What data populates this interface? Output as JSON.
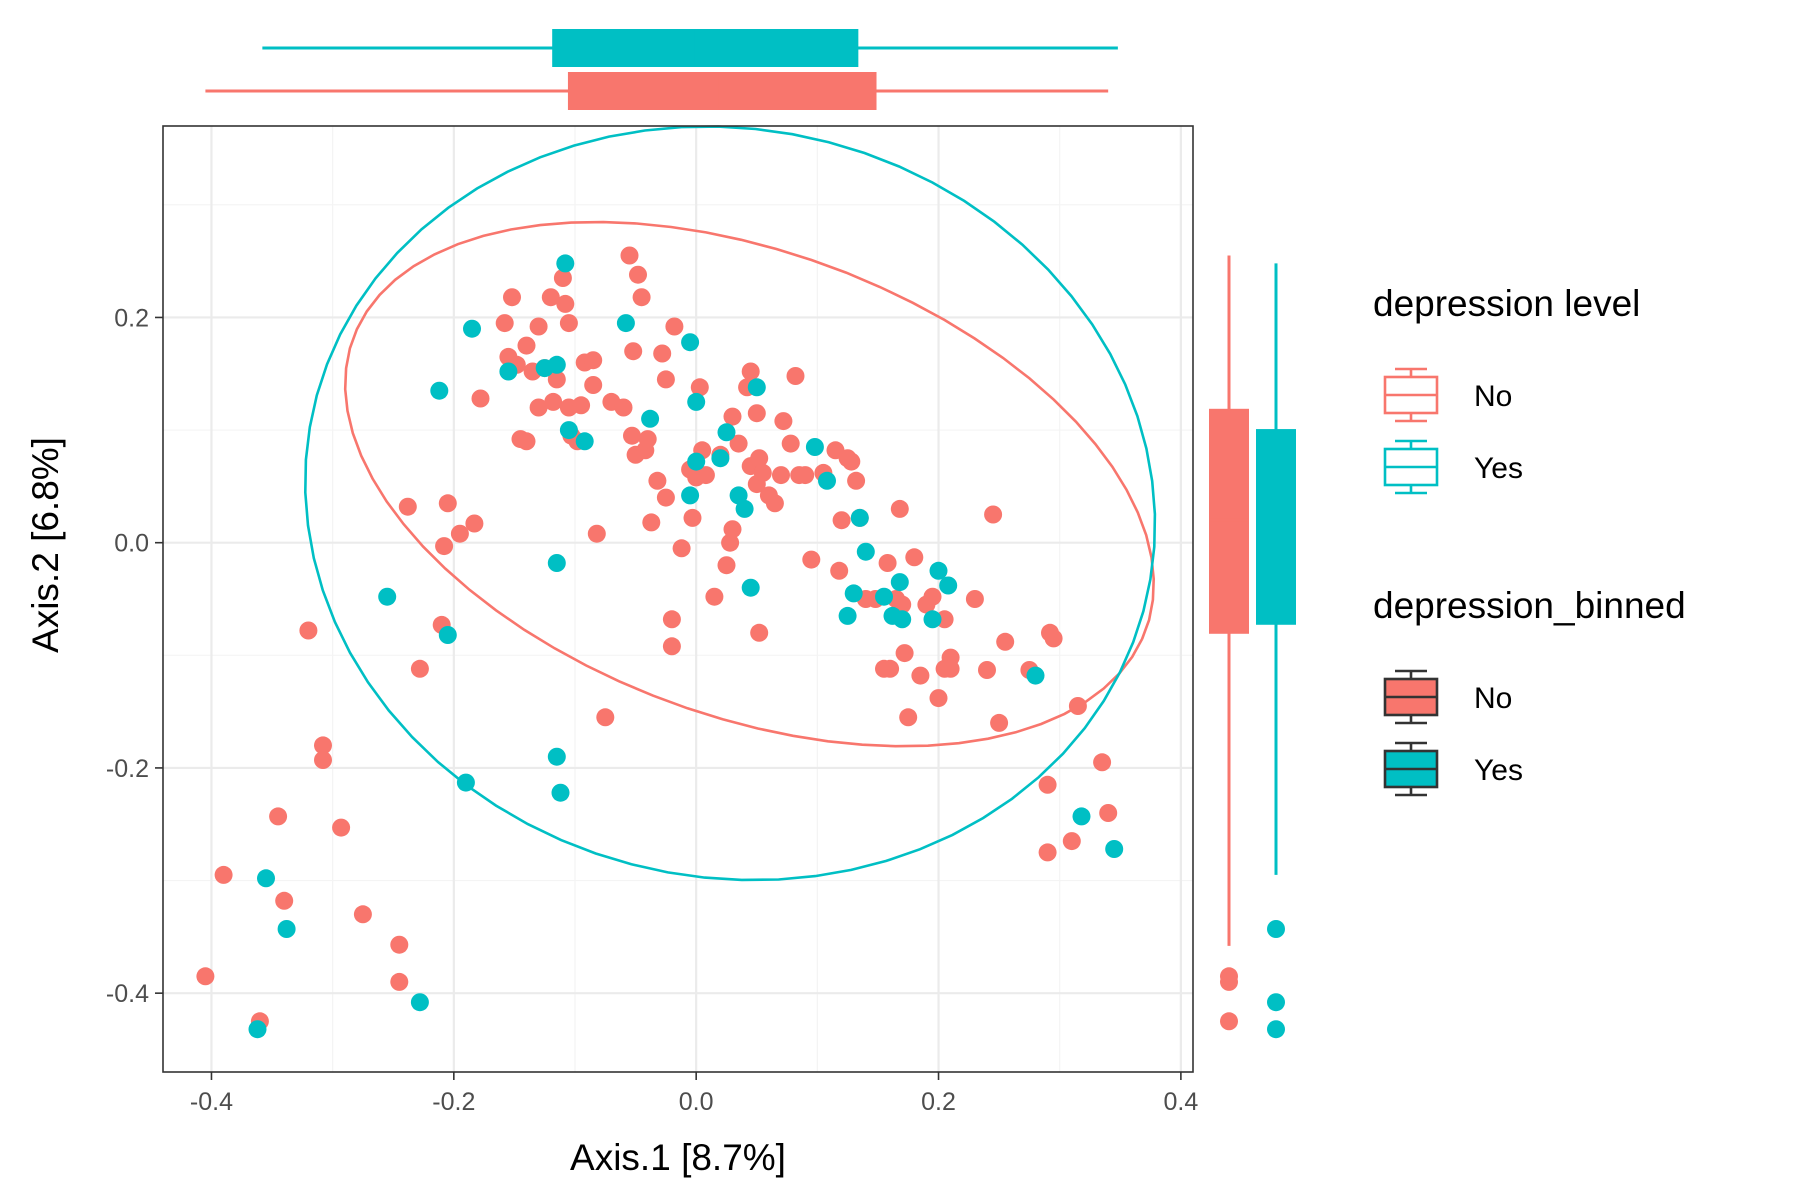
{
  "chart_data": {
    "type": "scatter",
    "xlabel": "Axis.1   [8.7%]",
    "ylabel": "Axis.2   [6.8%]",
    "xlim": [
      -0.44,
      0.41
    ],
    "ylim": [
      -0.47,
      0.37
    ],
    "x_ticks": [
      -0.4,
      -0.2,
      0.0,
      0.2,
      0.4
    ],
    "x_tick_labels": [
      "-0.4",
      "-0.2",
      "0.0",
      "0.2",
      "0.4"
    ],
    "y_ticks": [
      -0.4,
      -0.2,
      0.0,
      0.2
    ],
    "y_tick_labels": [
      "-0.4",
      "-0.2",
      "0.0",
      "0.2"
    ],
    "grid": true,
    "legend_position": "right",
    "legends": [
      {
        "title": "depression level",
        "style": "outline",
        "items": [
          {
            "label": "No",
            "color": "#F8766D"
          },
          {
            "label": "Yes",
            "color": "#00BFC4"
          }
        ]
      },
      {
        "title": "depression_binned",
        "style": "filled",
        "items": [
          {
            "label": "No",
            "color": "#F8766D"
          },
          {
            "label": "Yes",
            "color": "#00BFC4"
          }
        ]
      }
    ],
    "series": [
      {
        "group": "No",
        "color": "#F8766D",
        "points": [
          [
            -0.405,
            -0.385
          ],
          [
            -0.39,
            -0.295
          ],
          [
            -0.36,
            -0.425
          ],
          [
            -0.345,
            -0.243
          ],
          [
            -0.34,
            -0.318
          ],
          [
            -0.32,
            -0.078
          ],
          [
            -0.308,
            -0.18
          ],
          [
            -0.308,
            -0.193
          ],
          [
            -0.293,
            -0.253
          ],
          [
            -0.275,
            -0.33
          ],
          [
            -0.245,
            -0.357
          ],
          [
            -0.245,
            -0.39
          ],
          [
            -0.238,
            0.032
          ],
          [
            -0.228,
            -0.112
          ],
          [
            -0.21,
            -0.073
          ],
          [
            -0.208,
            -0.003
          ],
          [
            -0.205,
            0.035
          ],
          [
            -0.195,
            0.008
          ],
          [
            -0.183,
            0.017
          ],
          [
            -0.178,
            0.128
          ],
          [
            -0.158,
            0.195
          ],
          [
            -0.155,
            0.165
          ],
          [
            -0.152,
            0.218
          ],
          [
            -0.148,
            0.158
          ],
          [
            -0.145,
            0.092
          ],
          [
            -0.14,
            0.09
          ],
          [
            -0.14,
            0.175
          ],
          [
            -0.135,
            0.152
          ],
          [
            -0.13,
            0.192
          ],
          [
            -0.13,
            0.12
          ],
          [
            -0.125,
            0.155
          ],
          [
            -0.12,
            0.218
          ],
          [
            -0.118,
            0.125
          ],
          [
            -0.115,
            0.145
          ],
          [
            -0.11,
            0.235
          ],
          [
            -0.108,
            0.212
          ],
          [
            -0.105,
            0.195
          ],
          [
            -0.105,
            0.12
          ],
          [
            -0.103,
            0.095
          ],
          [
            -0.098,
            0.09
          ],
          [
            -0.095,
            0.122
          ],
          [
            -0.092,
            0.16
          ],
          [
            -0.085,
            0.14
          ],
          [
            -0.085,
            0.162
          ],
          [
            -0.082,
            0.008
          ],
          [
            -0.075,
            -0.155
          ],
          [
            -0.07,
            0.125
          ],
          [
            -0.06,
            0.12
          ],
          [
            -0.055,
            0.255
          ],
          [
            -0.053,
            0.095
          ],
          [
            -0.052,
            0.17
          ],
          [
            -0.05,
            0.078
          ],
          [
            -0.048,
            0.238
          ],
          [
            -0.045,
            0.218
          ],
          [
            -0.042,
            0.082
          ],
          [
            -0.04,
            0.092
          ],
          [
            -0.037,
            0.018
          ],
          [
            -0.032,
            0.055
          ],
          [
            -0.028,
            0.168
          ],
          [
            -0.025,
            0.145
          ],
          [
            -0.025,
            0.04
          ],
          [
            -0.02,
            -0.068
          ],
          [
            -0.02,
            -0.092
          ],
          [
            -0.018,
            0.192
          ],
          [
            -0.012,
            -0.005
          ],
          [
            -0.005,
            0.065
          ],
          [
            -0.003,
            0.022
          ],
          [
            0.0,
            0.058
          ],
          [
            0.003,
            0.138
          ],
          [
            0.005,
            0.082
          ],
          [
            0.008,
            0.06
          ],
          [
            0.015,
            -0.048
          ],
          [
            0.02,
            0.078
          ],
          [
            0.025,
            -0.02
          ],
          [
            0.028,
            0.0
          ],
          [
            0.03,
            0.112
          ],
          [
            0.03,
            0.012
          ],
          [
            0.035,
            0.088
          ],
          [
            0.042,
            0.138
          ],
          [
            0.045,
            0.152
          ],
          [
            0.045,
            0.068
          ],
          [
            0.05,
            0.115
          ],
          [
            0.05,
            0.052
          ],
          [
            0.052,
            0.075
          ],
          [
            0.052,
            -0.08
          ],
          [
            0.055,
            0.062
          ],
          [
            0.06,
            0.042
          ],
          [
            0.065,
            0.035
          ],
          [
            0.07,
            0.06
          ],
          [
            0.072,
            0.108
          ],
          [
            0.078,
            0.088
          ],
          [
            0.082,
            0.148
          ],
          [
            0.085,
            0.06
          ],
          [
            0.09,
            0.06
          ],
          [
            0.095,
            -0.015
          ],
          [
            0.105,
            0.062
          ],
          [
            0.115,
            0.082
          ],
          [
            0.118,
            -0.025
          ],
          [
            0.12,
            0.02
          ],
          [
            0.125,
            0.075
          ],
          [
            0.128,
            0.072
          ],
          [
            0.132,
            0.055
          ],
          [
            0.135,
            0.022
          ],
          [
            0.14,
            -0.05
          ],
          [
            0.148,
            -0.05
          ],
          [
            0.155,
            -0.112
          ],
          [
            0.158,
            -0.018
          ],
          [
            0.16,
            -0.112
          ],
          [
            0.165,
            -0.05
          ],
          [
            0.168,
            0.03
          ],
          [
            0.17,
            -0.055
          ],
          [
            0.172,
            -0.098
          ],
          [
            0.175,
            -0.155
          ],
          [
            0.18,
            -0.013
          ],
          [
            0.185,
            -0.118
          ],
          [
            0.19,
            -0.055
          ],
          [
            0.195,
            -0.048
          ],
          [
            0.2,
            -0.138
          ],
          [
            0.205,
            -0.068
          ],
          [
            0.205,
            -0.112
          ],
          [
            0.21,
            -0.102
          ],
          [
            0.21,
            -0.112
          ],
          [
            0.23,
            -0.05
          ],
          [
            0.24,
            -0.113
          ],
          [
            0.245,
            0.025
          ],
          [
            0.25,
            -0.16
          ],
          [
            0.255,
            -0.088
          ],
          [
            0.275,
            -0.113
          ],
          [
            0.29,
            -0.215
          ],
          [
            0.29,
            -0.275
          ],
          [
            0.292,
            -0.08
          ],
          [
            0.295,
            -0.085
          ],
          [
            0.31,
            -0.265
          ],
          [
            0.315,
            -0.145
          ],
          [
            0.335,
            -0.195
          ],
          [
            0.34,
            -0.24
          ]
        ]
      },
      {
        "group": "Yes",
        "color": "#00BFC4",
        "points": [
          [
            -0.362,
            -0.432
          ],
          [
            -0.355,
            -0.298
          ],
          [
            -0.338,
            -0.343
          ],
          [
            -0.255,
            -0.048
          ],
          [
            -0.228,
            -0.408
          ],
          [
            -0.212,
            0.135
          ],
          [
            -0.205,
            -0.082
          ],
          [
            -0.19,
            -0.213
          ],
          [
            -0.185,
            0.19
          ],
          [
            -0.155,
            0.152
          ],
          [
            -0.125,
            0.155
          ],
          [
            -0.115,
            0.158
          ],
          [
            -0.115,
            -0.018
          ],
          [
            -0.115,
            -0.19
          ],
          [
            -0.112,
            -0.222
          ],
          [
            -0.108,
            0.248
          ],
          [
            -0.105,
            0.1
          ],
          [
            -0.092,
            0.09
          ],
          [
            -0.058,
            0.195
          ],
          [
            -0.038,
            0.11
          ],
          [
            -0.005,
            0.178
          ],
          [
            -0.005,
            0.042
          ],
          [
            0.0,
            0.125
          ],
          [
            0.0,
            0.072
          ],
          [
            0.02,
            0.075
          ],
          [
            0.025,
            0.098
          ],
          [
            0.035,
            0.042
          ],
          [
            0.04,
            0.03
          ],
          [
            0.045,
            -0.04
          ],
          [
            0.05,
            0.138
          ],
          [
            0.098,
            0.085
          ],
          [
            0.108,
            0.055
          ],
          [
            0.125,
            -0.065
          ],
          [
            0.13,
            -0.045
          ],
          [
            0.135,
            0.022
          ],
          [
            0.14,
            -0.008
          ],
          [
            0.155,
            -0.048
          ],
          [
            0.162,
            -0.065
          ],
          [
            0.168,
            -0.035
          ],
          [
            0.17,
            -0.068
          ],
          [
            0.195,
            -0.068
          ],
          [
            0.2,
            -0.025
          ],
          [
            0.208,
            -0.038
          ],
          [
            0.28,
            -0.118
          ],
          [
            0.318,
            -0.243
          ],
          [
            0.345,
            -0.272
          ]
        ]
      }
    ],
    "ellipses": [
      {
        "group": "No",
        "cx": 0.044,
        "cy": 0.052,
        "rx": 0.352,
        "ry": 0.204,
        "angle_deg": -23
      },
      {
        "group": "Yes",
        "cx": 0.028,
        "cy": 0.035,
        "rx": 0.355,
        "ry": 0.33,
        "angle_deg": -25
      }
    ],
    "x_marginal_boxplots": [
      {
        "group": "Yes",
        "color": "#00BFC4",
        "whisker_low": -0.358,
        "q1": -0.118,
        "median": 0.0,
        "q3": 0.133,
        "whisker_high": 0.348
      },
      {
        "group": "No",
        "color": "#F8766D",
        "whisker_low": -0.405,
        "q1": -0.105,
        "median": 0.02,
        "q3": 0.148,
        "whisker_high": 0.34
      }
    ],
    "y_marginal_boxplots": [
      {
        "group": "No",
        "color": "#F8766D",
        "whisker_low": -0.358,
        "q1": -0.08,
        "median": 0.02,
        "q3": 0.118,
        "whisker_high": 0.255,
        "outliers": [
          -0.385,
          -0.39,
          -0.425
        ]
      },
      {
        "group": "Yes",
        "color": "#00BFC4",
        "whisker_low": -0.295,
        "q1": -0.072,
        "median": 0.022,
        "q3": 0.1,
        "whisker_high": 0.248,
        "outliers": [
          -0.343,
          -0.408,
          -0.432
        ]
      }
    ]
  }
}
